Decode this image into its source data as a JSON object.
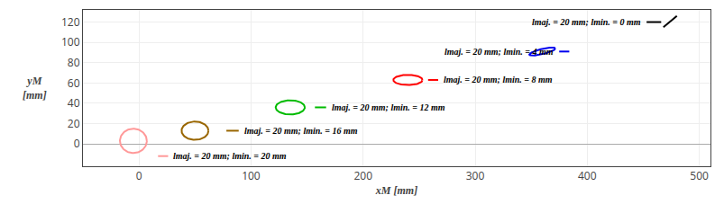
{
  "chart_data": {
    "type": "ellipses",
    "x_label": "xM [mm]",
    "y_label": "yM\n[mm]",
    "xlim": [
      -50,
      510
    ],
    "ylim": [
      -22,
      132
    ],
    "xticks": [
      0,
      100,
      200,
      300,
      400,
      500
    ],
    "yticks": [
      0,
      20,
      40,
      60,
      80,
      100,
      120
    ],
    "grid": true,
    "ellipses": [
      {
        "cx": -5,
        "cy": 3,
        "a": 12,
        "b": 12,
        "angle": 0,
        "color": "#ff9999"
      },
      {
        "cx": 50,
        "cy": 13,
        "a": 12,
        "b": 9,
        "angle": 0,
        "color": "#996600"
      },
      {
        "cx": 135,
        "cy": 36,
        "a": 13,
        "b": 7,
        "angle": 0,
        "color": "#00bb00"
      },
      {
        "cx": 240,
        "cy": 63,
        "a": 13,
        "b": 5,
        "angle": 0,
        "color": "#ff0000"
      },
      {
        "cx": 360,
        "cy": 91,
        "a": 12,
        "b": 2.5,
        "angle": 15,
        "color": "#0000ee"
      }
    ],
    "labels": [
      {
        "text": "lmaj. = 20 mm; lmin. = 20 mm",
        "color": "#ff9999",
        "line": [
          17,
          26,
          -12
        ]
      },
      {
        "text": "lmaj. = 20 mm; lmin. = 16 mm",
        "color": "#996600",
        "line": [
          78,
          89,
          13
        ]
      },
      {
        "text": "lmaj. = 20 mm; lmin. = 12 mm",
        "color": "#00bb00",
        "line": [
          157,
          167,
          36
        ]
      },
      {
        "text": "lmaj. = 20 mm; lmin. = 8 mm",
        "color": "#ff0000",
        "line": [
          258,
          267,
          63
        ]
      },
      {
        "text": "lmaj. = 20 mm; lmin. = 4 mm",
        "color": "#0000ee",
        "line": [
          375,
          384,
          91
        ]
      },
      {
        "text": "lmaj. = 20 mm; lmin. = 0 mm",
        "color": "#000000",
        "line": [
          453,
          466,
          120
        ],
        "slash": [
          468,
          115,
          480,
          126
        ]
      }
    ]
  }
}
